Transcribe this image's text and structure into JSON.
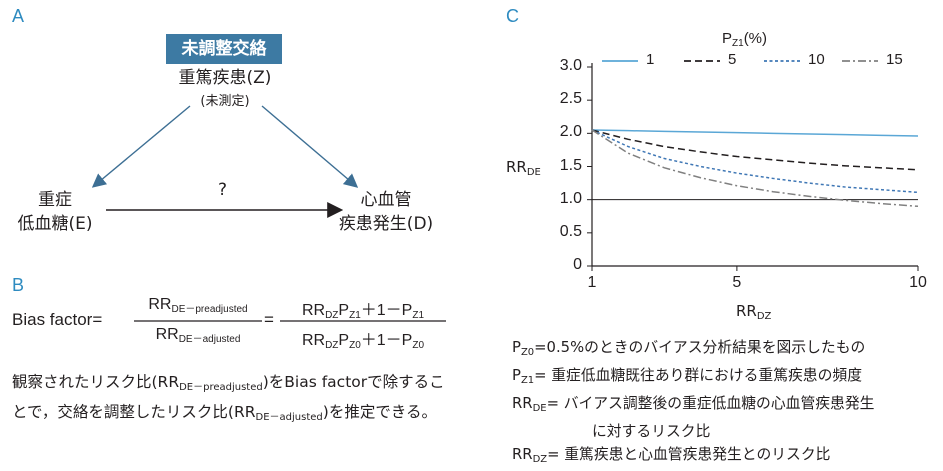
{
  "panel_a": {
    "label": "A",
    "box_label": "未調整交絡",
    "confounder": "重篤疾患(Z)",
    "confounder_note": "(未測定)",
    "exposure_line1": "重症",
    "exposure_line2": "低血糖(E)",
    "outcome_line1": "心血管",
    "outcome_line2": "疾患発生(D)",
    "question": "?"
  },
  "panel_b": {
    "label": "B",
    "lhs": "Bias factor",
    "equals": "=",
    "num1": "RR",
    "num1_sub": "DE－preadjusted",
    "den1": "RR",
    "den1_sub": "DE－adjusted",
    "num2_a": "RR",
    "num2_a_sub": "DZ",
    "num2_b": "P",
    "num2_b_sub": "Z1",
    "num2_c": "＋1－P",
    "num2_c_sub": "Z1",
    "den2_a": "RR",
    "den2_a_sub": "DZ",
    "den2_b": "P",
    "den2_b_sub": "Z0",
    "den2_c": "＋1－P",
    "den2_c_sub": "Z0",
    "desc_1": "観察されたリスク比(RR",
    "desc_1_sub": "DE－preadjusted",
    "desc_2": ")をBias factorで除することで，交絡を調整したリスク比(RR",
    "desc_2_sub": "DE－adjusted",
    "desc_3": ")を推定できる。"
  },
  "panel_c": {
    "label": "C",
    "legend_title": "P",
    "legend_title_sub": "Z1",
    "legend_title_unit": "(%)",
    "ylabel": "RR",
    "ylabel_sub": "DE",
    "xlabel": "RR",
    "xlabel_sub": "DZ",
    "notes": {
      "n1_a": "P",
      "n1_sub": "Z0",
      "n1_b": "=0.5%のときのバイアス分析結果を図示したもの",
      "n2_a": "P",
      "n2_sub": "Z1",
      "n2_b": "= 重症低血糖既往あり群における重篤疾患の頻度",
      "n3_a": "RR",
      "n3_sub": "DE",
      "n3_b": "= バイアス調整後の重症低血糖の心血管疾患発生",
      "n3_c": "に対するリスク比",
      "n4_a": "RR",
      "n4_sub": "DZ",
      "n4_b": "= 重篤疾患と心血管疾患発生とのリスク比"
    }
  },
  "chart_data": {
    "type": "line",
    "title": "",
    "xlabel": "RR_DZ",
    "ylabel": "RR_DE",
    "xlim": [
      1,
      10
    ],
    "ylim": [
      0,
      3.0
    ],
    "xticks": [
      "1",
      "5",
      "10"
    ],
    "yticks": [
      "0",
      "0.5",
      "1.0",
      "1.5",
      "2.0",
      "2.5",
      "3.0"
    ],
    "reference_line": 1.0,
    "series": [
      {
        "name": "1",
        "style": "solid",
        "color": "#5aa7d6",
        "x": [
          1,
          2,
          3,
          4,
          5,
          6,
          7,
          8,
          9,
          10
        ],
        "values": [
          2.05,
          2.04,
          2.03,
          2.02,
          2.01,
          2.0,
          1.99,
          1.98,
          1.97,
          1.96
        ]
      },
      {
        "name": "5",
        "style": "dashed",
        "color": "#231f20",
        "x": [
          1,
          2,
          3,
          4,
          5,
          6,
          7,
          8,
          9,
          10
        ],
        "values": [
          2.05,
          1.91,
          1.8,
          1.72,
          1.65,
          1.6,
          1.55,
          1.51,
          1.48,
          1.45
        ]
      },
      {
        "name": "10",
        "style": "dotted",
        "color": "#3f77b5",
        "x": [
          1,
          2,
          3,
          4,
          5,
          6,
          7,
          8,
          9,
          10
        ],
        "values": [
          2.05,
          1.8,
          1.62,
          1.5,
          1.4,
          1.32,
          1.25,
          1.19,
          1.15,
          1.11
        ]
      },
      {
        "name": "15",
        "style": "dashdot",
        "color": "#808080",
        "x": [
          1,
          2,
          3,
          4,
          5,
          6,
          7,
          8,
          9,
          10
        ],
        "values": [
          2.05,
          1.7,
          1.48,
          1.33,
          1.21,
          1.12,
          1.05,
          0.99,
          0.94,
          0.9
        ]
      }
    ]
  }
}
